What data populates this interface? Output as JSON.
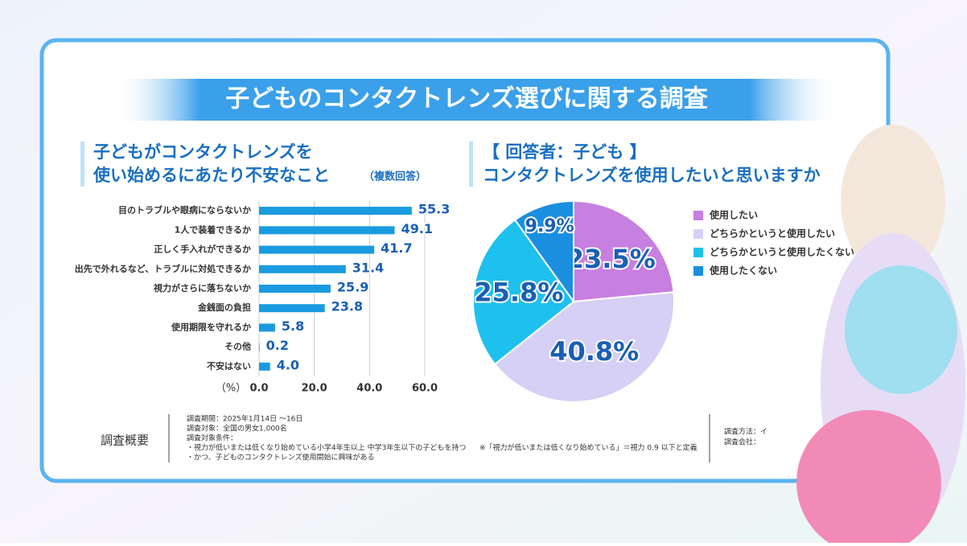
{
  "title": "子どものコンタクトレンズ選びに関する調査",
  "chart_data": [
    {
      "type": "bar",
      "orientation": "horizontal",
      "title": [
        "子どもがコンタクトレンズを",
        "使い始めるにあたり不安なこと"
      ],
      "subtitle": "（複数回答）",
      "categories": [
        "目のトラブルや眼病にならないか",
        "1人で装着できるか",
        "正しく手入れができるか",
        "出先で外れるなど、トラブルに対処できるか",
        "視力がさらに落ちないか",
        "金銭面の負担",
        "使用期限を守れるか",
        "その他",
        "不安はない"
      ],
      "values": [
        55.3,
        49.1,
        41.7,
        31.4,
        25.9,
        23.8,
        5.8,
        0.2,
        4.0
      ],
      "value_labels": [
        "55.3",
        "49.1",
        "41.7",
        "31.4",
        "25.9",
        "23.8",
        "5.8",
        "0.2",
        "4.0"
      ],
      "color": "#1a9be0",
      "xlabel": "（%）",
      "xlim": [
        0,
        60
      ],
      "xticks": [
        {
          "value": 0,
          "label": "0.0"
        },
        {
          "value": 20,
          "label": "20.0"
        },
        {
          "value": 40,
          "label": "40.0"
        },
        {
          "value": 60,
          "label": "60.0"
        }
      ],
      "grid": true
    },
    {
      "type": "pie",
      "title": [
        "【 回答者：子ども 】",
        "コンタクトレンズを使用したいと思いますか"
      ],
      "categories": [
        "使用したい",
        "どちらかというと使用したい",
        "どちらかというと使用したくない",
        "使用したくない"
      ],
      "values": [
        23.5,
        40.8,
        25.8,
        9.9
      ],
      "value_labels": [
        "23.5%",
        "40.8%",
        "25.8%",
        "9.9%"
      ],
      "colors": [
        "#c77fe0",
        "#d6cff6",
        "#1ec0ee",
        "#1a8fe0"
      ],
      "legend": "right"
    }
  ],
  "overview": {
    "heading": "調査概要",
    "lines": [
      "調査期間：2025年1月14日 ～16日",
      "調査対象：全国の男女1,000名",
      "調査対象条件：",
      "・視力が低いまたは低くなり始めている小学4年生以上 中学3年生以下の子どもを持つ",
      "・かつ、子どものコンタクトレンズ使用開始に興味がある"
    ],
    "note": "※「視力が低いまたは低くなり始めている」＝視力 0.9 以下と定義",
    "method": [
      "調査方法：イ",
      "調査会社："
    ]
  }
}
